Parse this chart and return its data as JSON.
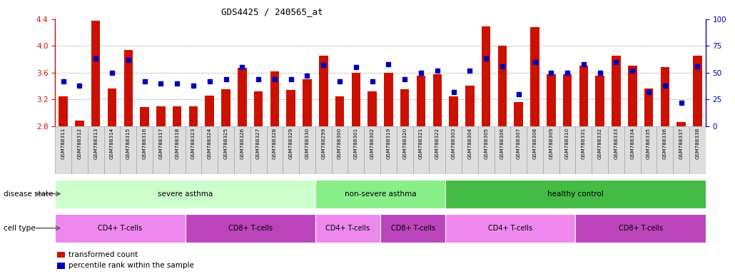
{
  "title": "GDS4425 / 240565_at",
  "samples": [
    "GSM788311",
    "GSM788312",
    "GSM788313",
    "GSM788314",
    "GSM788315",
    "GSM788316",
    "GSM788317",
    "GSM788318",
    "GSM788323",
    "GSM788324",
    "GSM788325",
    "GSM788326",
    "GSM788327",
    "GSM788328",
    "GSM788329",
    "GSM788330",
    "GSM788299",
    "GSM788300",
    "GSM788301",
    "GSM788302",
    "GSM788319",
    "GSM788320",
    "GSM788321",
    "GSM788322",
    "GSM788303",
    "GSM788304",
    "GSM788305",
    "GSM788306",
    "GSM788307",
    "GSM788308",
    "GSM788309",
    "GSM788310",
    "GSM788331",
    "GSM788332",
    "GSM788333",
    "GSM788334",
    "GSM788335",
    "GSM788336",
    "GSM788337",
    "GSM788338"
  ],
  "bar_values": [
    3.25,
    2.88,
    4.38,
    3.36,
    3.94,
    3.08,
    3.1,
    3.1,
    3.1,
    3.26,
    3.35,
    3.67,
    3.32,
    3.62,
    3.34,
    3.5,
    3.85,
    3.25,
    3.6,
    3.32,
    3.6,
    3.35,
    3.55,
    3.58,
    3.25,
    3.4,
    4.29,
    4.0,
    3.16,
    4.28,
    3.58,
    3.58,
    3.7,
    3.56,
    3.85,
    3.7,
    3.36,
    3.68,
    2.86,
    3.85
  ],
  "percentile_values": [
    42,
    38,
    63,
    50,
    62,
    42,
    40,
    40,
    38,
    42,
    44,
    55,
    44,
    44,
    44,
    47,
    57,
    42,
    55,
    42,
    58,
    44,
    50,
    52,
    32,
    52,
    63,
    56,
    30,
    60,
    50,
    50,
    58,
    50,
    60,
    52,
    32,
    38,
    22,
    56
  ],
  "ylim_left": [
    2.8,
    4.4
  ],
  "ylim_right": [
    0,
    100
  ],
  "yticks_left": [
    2.8,
    3.2,
    3.6,
    4.0,
    4.4
  ],
  "yticks_right": [
    0,
    25,
    50,
    75,
    100
  ],
  "bar_color": "#cc1100",
  "dot_color": "#0000bb",
  "bar_bottom": 2.8,
  "disease_state_groups": [
    {
      "label": "severe asthma",
      "start": 0,
      "end": 15,
      "color": "#ccffcc"
    },
    {
      "label": "non-severe asthma",
      "start": 16,
      "end": 23,
      "color": "#88ee88"
    },
    {
      "label": "healthy control",
      "start": 24,
      "end": 39,
      "color": "#44bb44"
    }
  ],
  "cell_type_groups": [
    {
      "label": "CD4+ T-cells",
      "start": 0,
      "end": 7,
      "color": "#ee88ee"
    },
    {
      "label": "CD8+ T-cells",
      "start": 8,
      "end": 15,
      "color": "#bb44bb"
    },
    {
      "label": "CD4+ T-cells",
      "start": 16,
      "end": 19,
      "color": "#ee88ee"
    },
    {
      "label": "CD8+ T-cells",
      "start": 20,
      "end": 23,
      "color": "#bb44bb"
    },
    {
      "label": "CD4+ T-cells",
      "start": 24,
      "end": 31,
      "color": "#ee88ee"
    },
    {
      "label": "CD8+ T-cells",
      "start": 32,
      "end": 39,
      "color": "#bb44bb"
    }
  ],
  "left_axis_color": "#cc1100",
  "right_axis_color": "#0000bb",
  "grid_color": "#888888",
  "tick_bg_color": "#dddddd",
  "tick_border_color": "#999999"
}
